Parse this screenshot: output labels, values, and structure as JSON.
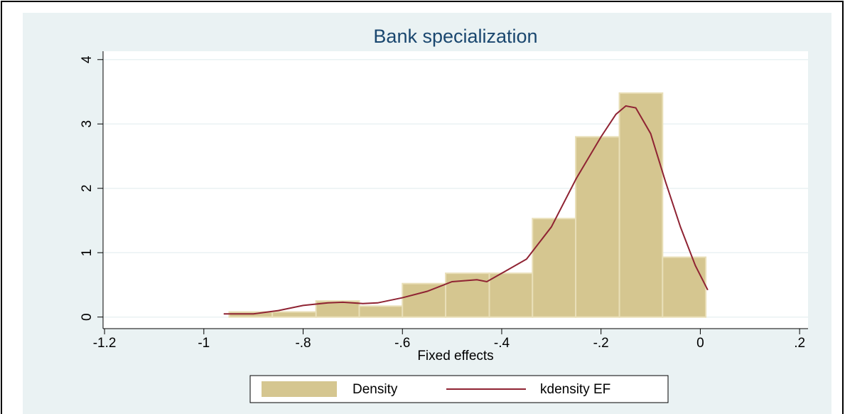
{
  "chart_data": {
    "type": "histogram",
    "title": "Bank specialization",
    "x_label": "Fixed effects",
    "bins": [
      -0.949,
      -0.862,
      -0.774,
      -0.687,
      -0.6,
      -0.513,
      -0.425,
      -0.338,
      -0.251,
      -0.163,
      -0.076,
      0.011
    ],
    "series": [
      {
        "name": "Density",
        "color": "#d5c690",
        "values": [
          0.08,
          0.08,
          0.25,
          0.17,
          0.52,
          0.68,
          0.68,
          1.53,
          2.8,
          3.48,
          0.93
        ]
      }
    ],
    "lines": [
      {
        "name": "kdensity EF",
        "color": "#8f2333",
        "x": [
          -0.96,
          -0.9,
          -0.85,
          -0.8,
          -0.75,
          -0.72,
          -0.68,
          -0.65,
          -0.6,
          -0.55,
          -0.5,
          -0.45,
          -0.43,
          -0.4,
          -0.35,
          -0.3,
          -0.25,
          -0.2,
          -0.17,
          -0.15,
          -0.13,
          -0.1,
          -0.07,
          -0.04,
          -0.01,
          0.015
        ],
        "values": [
          0.05,
          0.05,
          0.1,
          0.18,
          0.22,
          0.23,
          0.21,
          0.22,
          0.3,
          0.4,
          0.55,
          0.58,
          0.55,
          0.68,
          0.9,
          1.4,
          2.15,
          2.8,
          3.15,
          3.28,
          3.25,
          2.85,
          2.1,
          1.4,
          0.8,
          0.42
        ]
      }
    ],
    "xlim": [
      -1.203,
      0.217
    ],
    "ylim": [
      -0.18,
      4.13
    ],
    "xticks": [
      -1.2,
      -1,
      {
        "value": -0.8,
        "label": "-.8"
      },
      {
        "value": -0.6,
        "label": "-.6"
      },
      {
        "value": -0.4,
        "label": "-.4"
      },
      {
        "value": -0.2,
        "label": "-.2"
      },
      0,
      {
        "value": 0.2,
        "label": ".2"
      }
    ],
    "yticks": [
      0,
      1,
      2,
      3,
      4
    ],
    "grid": true
  }
}
